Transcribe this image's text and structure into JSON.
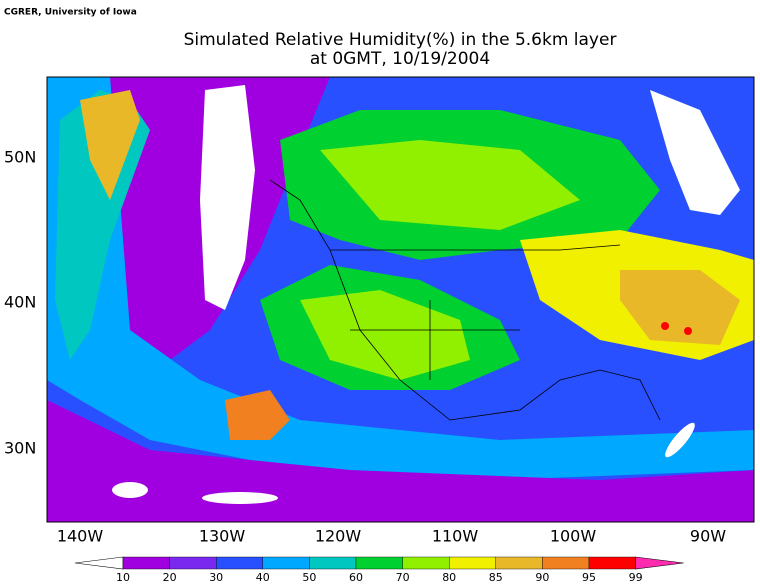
{
  "header": {
    "credit": "CGRER, University of Iowa",
    "title": "Simulated Relative Humidity(%) in the 5.6km layer",
    "subtitle": "at 0GMT, 10/19/2004"
  },
  "map": {
    "lat_labels": [
      "50N",
      "40N",
      "30N"
    ],
    "lon_labels": [
      "140W",
      "130W",
      "120W",
      "110W",
      "100W",
      "90W"
    ]
  },
  "colorbar": {
    "labels": [
      10,
      20,
      30,
      40,
      50,
      60,
      70,
      80,
      85,
      90,
      95,
      99
    ],
    "colors": [
      "#ffffff",
      "#a000e0",
      "#7a28f0",
      "#2850ff",
      "#00a8ff",
      "#00c8c0",
      "#00d030",
      "#90f000",
      "#f0f000",
      "#e8b828",
      "#f08020",
      "#ff0000",
      "#ff2cb0"
    ]
  }
}
